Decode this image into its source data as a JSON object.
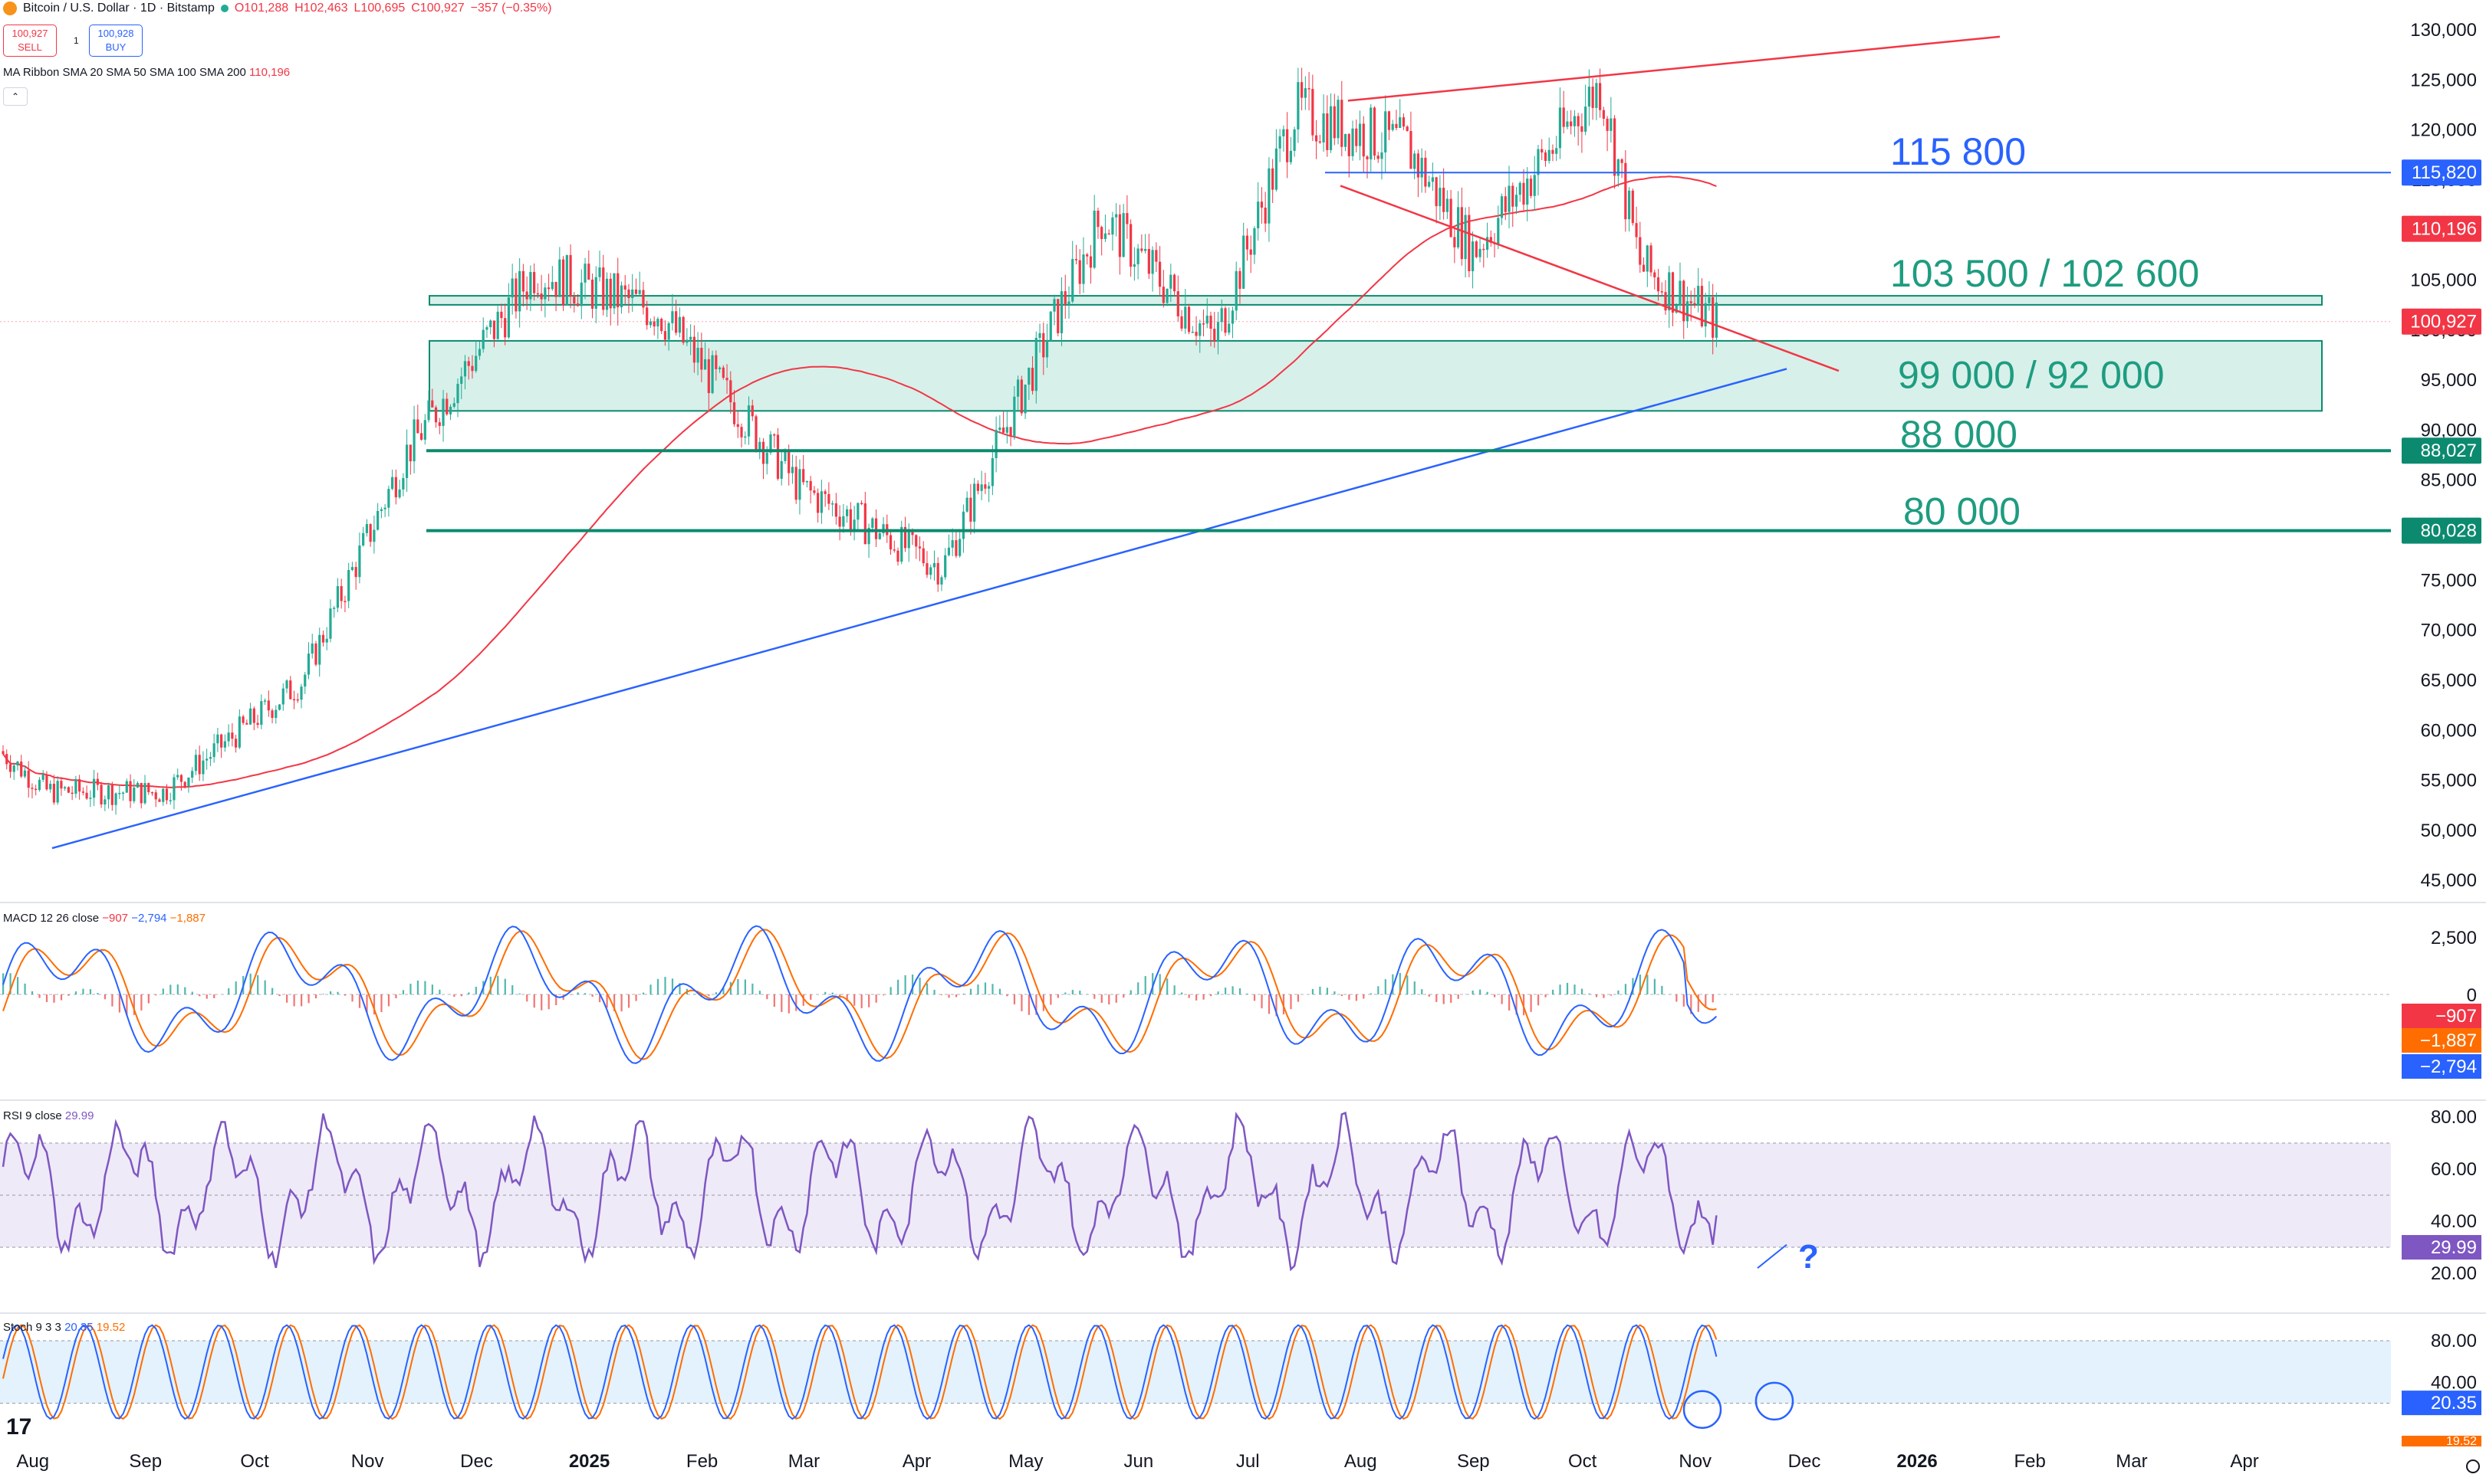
{
  "header": {
    "symbol": "Bitcoin / U.S. Dollar · 1D · Bitstamp",
    "open": "O101,288",
    "high": "H102,463",
    "low": "L100,695",
    "close": "C100,927",
    "change": "−357 (−0.35%)",
    "sell_price": "100,927",
    "sell_label": "SELL",
    "buy_price": "100,928",
    "buy_label": "BUY",
    "spread": "1",
    "ma_ribbon": "MA Ribbon SMA 20 SMA 50 SMA 100 SMA 200",
    "ma_ribbon_value": "110,196",
    "collapse_glyph": "⌃"
  },
  "colors": {
    "up": "#22ab94",
    "down": "#f23645",
    "blue": "#2962ff",
    "ma": "#f23645",
    "zone_fill": "#d7f0ea",
    "zone_stroke": "#0c8a6f",
    "label_green": "#1e9c80",
    "label_blue": "#2962ff",
    "macd": "#2962ff",
    "signal": "#ff6d00",
    "rsi": "#7e57c2",
    "stoch_k": "#2962ff",
    "stoch_d": "#ff6d00"
  },
  "annotations": {
    "level_115800": "115 800",
    "level_103500": "103 500 / 102 600",
    "level_99000": "99 000 / 92 000",
    "level_88000": "88 000",
    "level_80000": "80 000",
    "rsi_question": "?"
  },
  "price_axis": {
    "ticks": [
      "130,000",
      "125,000",
      "120,000",
      "115,000",
      "110,000",
      "105,000",
      "100,000",
      "95,000",
      "90,000",
      "85,000",
      "80,000",
      "75,000",
      "70,000",
      "65,000",
      "60,000",
      "55,000",
      "50,000",
      "45,000"
    ],
    "tick_values": [
      130000,
      125000,
      120000,
      115000,
      110000,
      105000,
      100000,
      95000,
      90000,
      85000,
      80000,
      75000,
      70000,
      65000,
      60000,
      55000,
      50000,
      45000
    ],
    "badges": [
      {
        "text": "115,820",
        "value": 115820,
        "color": "#2962ff"
      },
      {
        "text": "110,196",
        "value": 110196,
        "color": "#f23645"
      },
      {
        "text": "100,927",
        "value": 100927,
        "color": "#f23645"
      },
      {
        "text": "88,027",
        "value": 88027,
        "color": "#0c8a6f"
      },
      {
        "text": "80,028",
        "value": 80028,
        "color": "#0c8a6f"
      }
    ]
  },
  "time_axis": {
    "labels": [
      "Aug",
      "Sep",
      "Oct",
      "Nov",
      "Dec",
      "2025",
      "Feb",
      "Mar",
      "Apr",
      "May",
      "Jun",
      "Jul",
      "Aug",
      "Sep",
      "Oct",
      "Nov",
      "Dec",
      "2026",
      "Feb",
      "Mar",
      "Apr"
    ]
  },
  "macd": {
    "label": "MACD 12 26 close",
    "v_hist": "−907",
    "v_macd": "−2,794",
    "v_signal": "−1,887",
    "ticks": [
      "2,500",
      "0"
    ],
    "badges": [
      "−907",
      "−1,887",
      "−2,794"
    ]
  },
  "rsi": {
    "label": "RSI 9 close",
    "value": "29.99",
    "ticks": [
      "80.00",
      "60.00",
      "40.00",
      "20.00"
    ],
    "badge": "29.99"
  },
  "stoch": {
    "label": "Stoch 9 3 3",
    "k": "20.35",
    "d": "19.52",
    "ticks": [
      "80.00",
      "40.00"
    ],
    "badge": "20.35",
    "badge2": "19.52"
  },
  "chart_data": {
    "type": "candlestick",
    "title": "Bitcoin / U.S. Dollar · 1D · Bitstamp",
    "ylim": [
      45000,
      130000
    ],
    "x_range": [
      "2024-07-23",
      "2026-04-30"
    ],
    "last_close": 100927,
    "sma200_last": 110196,
    "closes_approx": [
      {
        "date": "2024-08-05",
        "close": 54000
      },
      {
        "date": "2024-09-06",
        "close": 53900
      },
      {
        "date": "2024-10-14",
        "close": 65000
      },
      {
        "date": "2024-11-12",
        "close": 88000
      },
      {
        "date": "2024-12-17",
        "close": 106000
      },
      {
        "date": "2025-01-20",
        "close": 102000
      },
      {
        "date": "2025-02-28",
        "close": 84300
      },
      {
        "date": "2025-04-08",
        "close": 76300
      },
      {
        "date": "2025-05-22",
        "close": 111500
      },
      {
        "date": "2025-06-22",
        "close": 99000
      },
      {
        "date": "2025-07-14",
        "close": 122000
      },
      {
        "date": "2025-08-14",
        "close": 118300
      },
      {
        "date": "2025-09-01",
        "close": 108000
      },
      {
        "date": "2025-10-06",
        "close": 124700
      },
      {
        "date": "2025-10-17",
        "close": 106400
      },
      {
        "date": "2025-11-07",
        "close": 100927
      }
    ],
    "levels": [
      115820,
      103500,
      102600,
      99000,
      92000,
      88027,
      80028
    ]
  }
}
